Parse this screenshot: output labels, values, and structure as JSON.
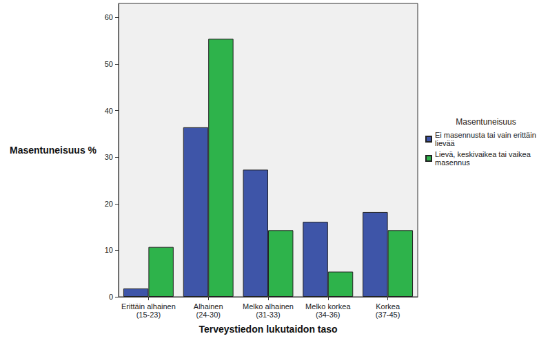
{
  "chart_data": {
    "type": "bar",
    "xlabel": "Terveystiedon lukutaidon taso",
    "ylabel": "Masentuneisuus %",
    "legend_title": "Masentuneisuus",
    "legend": "right",
    "grid": false,
    "categories": [
      "Erittäin alhainen\n(15-23)",
      "Alhainen\n(24-30)",
      "Melko alhainen\n(31-33)",
      "Melko korkea\n(34-36)",
      "Korkea\n(37-45)"
    ],
    "series": [
      {
        "name": "Ei masennusta tai vain erittäin lievää",
        "color": "#3e55a8",
        "values": [
          1.8,
          36.4,
          27.3,
          16.1,
          18.2
        ]
      },
      {
        "name": "Lievä, keskivaikea tai vaikea masennus",
        "color": "#2eb34b",
        "values": [
          10.7,
          55.4,
          14.3,
          5.4,
          14.3
        ]
      }
    ],
    "ylim": [
      0,
      63
    ],
    "yticks": [
      0,
      10,
      20,
      30,
      40,
      50,
      60
    ]
  }
}
